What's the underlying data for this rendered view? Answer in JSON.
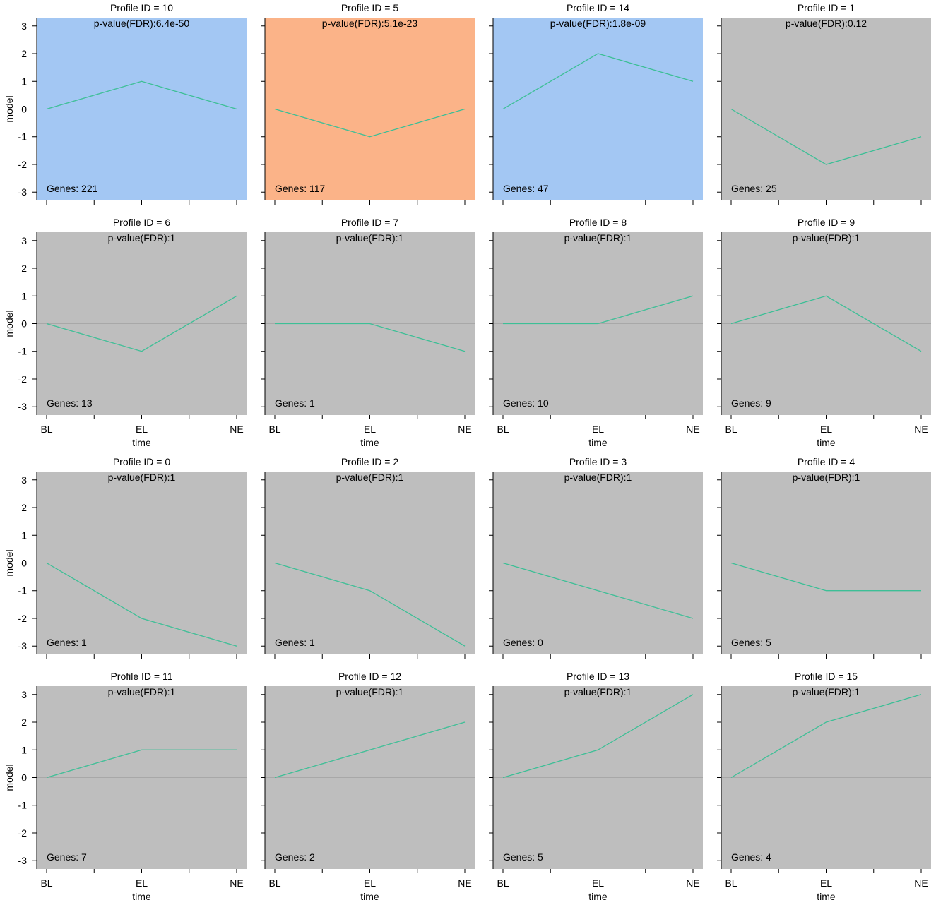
{
  "chart_data": {
    "type": "line",
    "x": [
      "BL",
      "EL",
      "NE"
    ],
    "xlabel": "time",
    "ylabel": "model",
    "ylim": [
      -3.3,
      3.3
    ],
    "yticks": [
      -3,
      -2,
      -1,
      0,
      1,
      2,
      3
    ],
    "pvalue_prefix": "p-value(FDR):",
    "genes_prefix": "Genes: ",
    "colors": {
      "significant_up": "#a3c7f3",
      "significant_down": "#fbb388",
      "not_significant": "#bebebe",
      "line": "#3dbf96",
      "zero_line": "#a8a8a8"
    },
    "panels": [
      {
        "title": "Profile ID = 10",
        "pvalue": "6.4e-50",
        "genes": "221",
        "values": [
          0,
          1,
          0
        ],
        "color": "significant_up"
      },
      {
        "title": "Profile ID = 5",
        "pvalue": "5.1e-23",
        "genes": "117",
        "values": [
          0,
          -1,
          0
        ],
        "color": "significant_down"
      },
      {
        "title": "Profile ID = 14",
        "pvalue": "1.8e-09",
        "genes": "47",
        "values": [
          0,
          2,
          1
        ],
        "color": "significant_up"
      },
      {
        "title": "Profile ID = 1",
        "pvalue": "0.12",
        "genes": "25",
        "values": [
          0,
          -2,
          -1
        ],
        "color": "not_significant"
      },
      {
        "title": "Profile ID = 6",
        "pvalue": "1",
        "genes": "13",
        "values": [
          0,
          -1,
          1
        ],
        "color": "not_significant"
      },
      {
        "title": "Profile ID = 7",
        "pvalue": "1",
        "genes": "1",
        "values": [
          0,
          0,
          -1
        ],
        "color": "not_significant"
      },
      {
        "title": "Profile ID = 8",
        "pvalue": "1",
        "genes": "10",
        "values": [
          0,
          0,
          1
        ],
        "color": "not_significant"
      },
      {
        "title": "Profile ID = 9",
        "pvalue": "1",
        "genes": "9",
        "values": [
          0,
          1,
          -1
        ],
        "color": "not_significant"
      },
      {
        "title": "Profile ID = 0",
        "pvalue": "1",
        "genes": "1",
        "values": [
          0,
          -2,
          -3
        ],
        "color": "not_significant"
      },
      {
        "title": "Profile ID = 2",
        "pvalue": "1",
        "genes": "1",
        "values": [
          0,
          -1,
          -3
        ],
        "color": "not_significant"
      },
      {
        "title": "Profile ID = 3",
        "pvalue": "1",
        "genes": "0",
        "values": [
          0,
          -1,
          -2
        ],
        "color": "not_significant"
      },
      {
        "title": "Profile ID = 4",
        "pvalue": "1",
        "genes": "5",
        "values": [
          0,
          -1,
          -1
        ],
        "color": "not_significant"
      },
      {
        "title": "Profile ID = 11",
        "pvalue": "1",
        "genes": "7",
        "values": [
          0,
          1,
          1
        ],
        "color": "not_significant"
      },
      {
        "title": "Profile ID = 12",
        "pvalue": "1",
        "genes": "2",
        "values": [
          0,
          1,
          2
        ],
        "color": "not_significant"
      },
      {
        "title": "Profile ID = 13",
        "pvalue": "1",
        "genes": "5",
        "values": [
          0,
          1,
          3
        ],
        "color": "not_significant"
      },
      {
        "title": "Profile ID = 15",
        "pvalue": "1",
        "genes": "4",
        "values": [
          0,
          2,
          3
        ],
        "color": "not_significant"
      }
    ]
  }
}
